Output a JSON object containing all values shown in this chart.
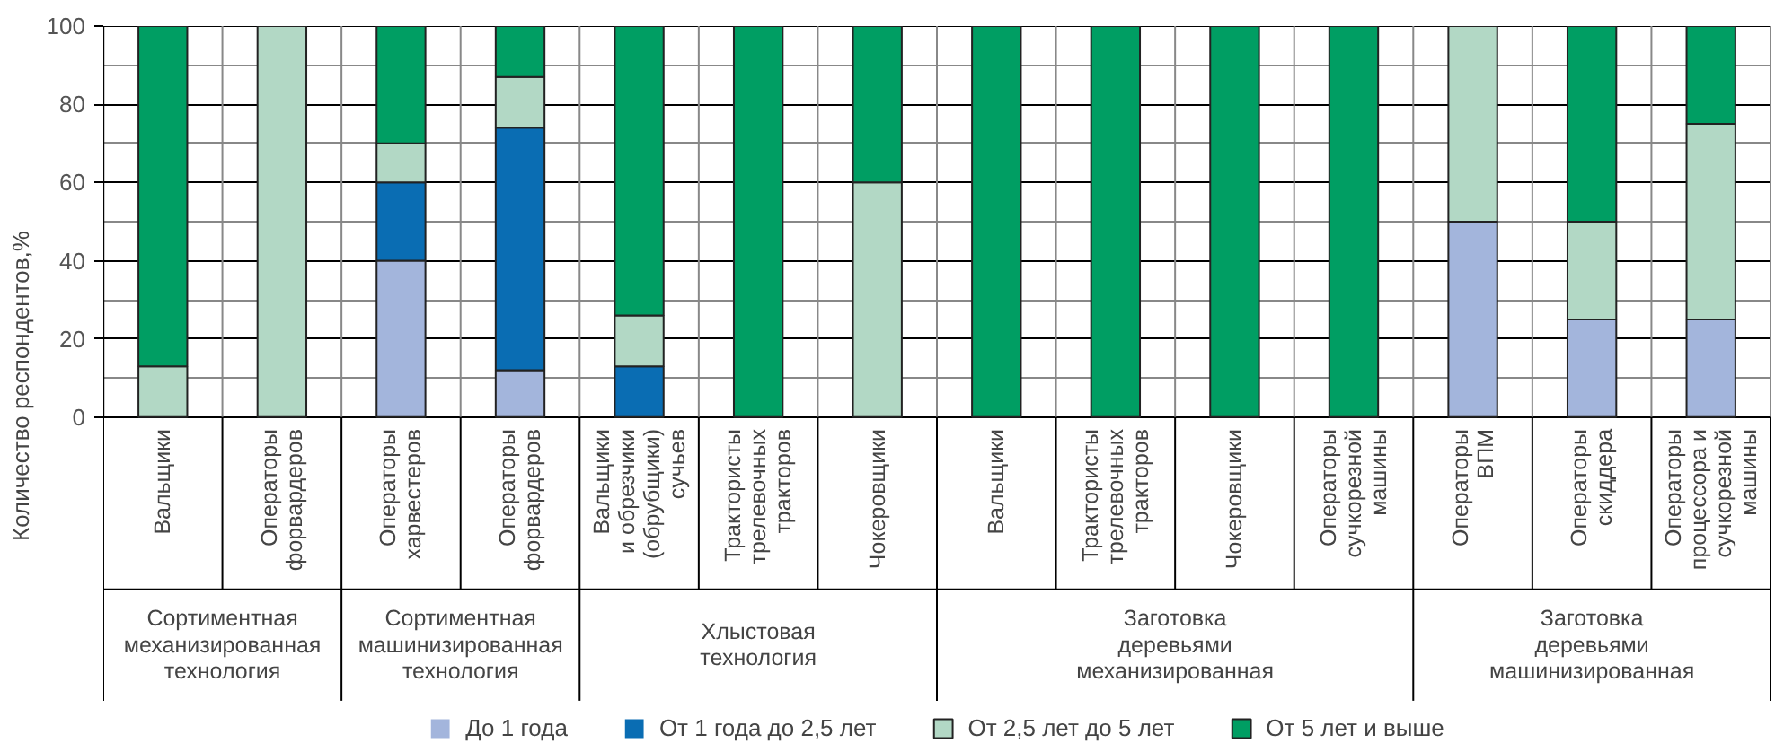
{
  "chart_data": {
    "type": "bar",
    "stacked": true,
    "ylabel": "Количество респондентов,%",
    "categories": [
      "Вальщики",
      "Операторы\nфорвардеров",
      "Операторы\nхарвестеров",
      "Операторы\nфорвардеров",
      "Вальщики\nи обрезчики\n(обрубщики)\nсучьев",
      "Трактористы\nтрелевочных\nтракторов",
      "Чокеровщики",
      "Вальщики",
      "Трактористы\nтрелевочных\nтракторов",
      "Чокеровщики",
      "Операторы\nсучкорезной\nмашины",
      "Операторы\nВПМ",
      "Операторы\nскиддера",
      "Операторы\nпроцессора и\nсучкорезной\nмашины"
    ],
    "series": [
      {
        "name": "До 1 года",
        "color": "#a3b5dc",
        "values": [
          0,
          0,
          40,
          12,
          0,
          0,
          0,
          0,
          0,
          0,
          0,
          50,
          25,
          25
        ]
      },
      {
        "name": "От 1 года до 2,5 лет",
        "color": "#0a6db3",
        "values": [
          0,
          0,
          20,
          62,
          13,
          0,
          0,
          0,
          0,
          0,
          0,
          0,
          0,
          0
        ]
      },
      {
        "name": "От 2,5 лет до 5 лет",
        "color": "#b2d8c5",
        "values": [
          13,
          100,
          10,
          13,
          13,
          0,
          60,
          0,
          0,
          0,
          0,
          50,
          25,
          50
        ]
      },
      {
        "name": "От 5 лет и выше",
        "color": "#009e63",
        "values": [
          87,
          0,
          30,
          13,
          74,
          100,
          40,
          100,
          100,
          100,
          100,
          0,
          50,
          25
        ]
      }
    ],
    "annotations": [
      "Сортиментная\nмеханизированная\nтехнология",
      "Сортиментная\nмашинизированная\nтехнология",
      "Хлыстовая\nтехнология",
      "Заготовка\nдеревьями\nмеханизированная",
      "Заготовка\nдеревьями\nмашинизированная"
    ],
    "ylim": [
      0,
      100
    ],
    "yticks": [
      0,
      20,
      40,
      60,
      80,
      100
    ],
    "grid": "y",
    "legend": "bottom"
  }
}
